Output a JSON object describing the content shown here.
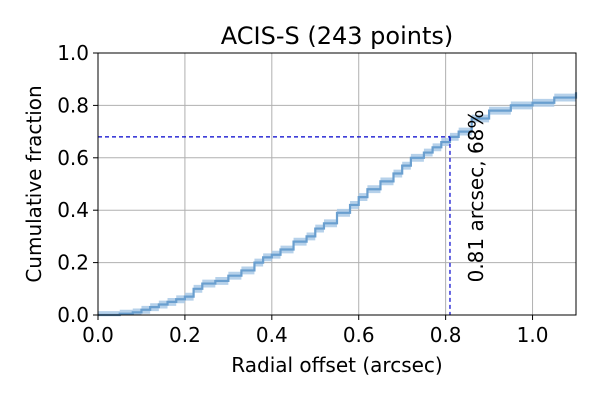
{
  "chart_data": {
    "type": "line",
    "title": "ACIS-S (243 points)",
    "xlabel": "Radial offset (arcsec)",
    "ylabel": "Cumulative fraction",
    "xlim": [
      0.0,
      1.1
    ],
    "ylim": [
      0.0,
      1.0
    ],
    "xticks": [
      0.0,
      0.2,
      0.4,
      0.6,
      0.8,
      1.0
    ],
    "xtick_labels": [
      "0.0",
      "0.2",
      "0.4",
      "0.6",
      "0.8",
      "1.0"
    ],
    "yticks": [
      0.0,
      0.2,
      0.4,
      0.6,
      0.8,
      1.0
    ],
    "ytick_labels": [
      "0.0",
      "0.2",
      "0.4",
      "0.6",
      "0.8",
      "1.0"
    ],
    "grid": true,
    "series": [
      {
        "style": "step",
        "color": "#6a9fcf",
        "band_color": "#a9c9e6",
        "x": [
          0.0,
          0.02,
          0.05,
          0.08,
          0.1,
          0.12,
          0.14,
          0.16,
          0.18,
          0.2,
          0.22,
          0.24,
          0.27,
          0.3,
          0.33,
          0.36,
          0.38,
          0.4,
          0.42,
          0.45,
          0.48,
          0.5,
          0.52,
          0.55,
          0.58,
          0.6,
          0.62,
          0.65,
          0.68,
          0.7,
          0.72,
          0.75,
          0.77,
          0.79,
          0.81,
          0.83,
          0.86,
          0.9,
          0.95,
          1.0,
          1.05,
          1.1
        ],
        "y": [
          0.0,
          0.0,
          0.005,
          0.01,
          0.02,
          0.03,
          0.04,
          0.05,
          0.06,
          0.07,
          0.1,
          0.12,
          0.13,
          0.15,
          0.17,
          0.2,
          0.22,
          0.23,
          0.25,
          0.28,
          0.3,
          0.33,
          0.35,
          0.39,
          0.42,
          0.45,
          0.48,
          0.51,
          0.54,
          0.57,
          0.6,
          0.62,
          0.64,
          0.66,
          0.68,
          0.7,
          0.75,
          0.78,
          0.8,
          0.81,
          0.83,
          0.85
        ],
        "band_halfwidth": 0.015
      }
    ],
    "reference": {
      "x": 0.81,
      "y": 0.68,
      "color": "#0000cc",
      "label": "0.81 arcsec, 68%"
    }
  }
}
